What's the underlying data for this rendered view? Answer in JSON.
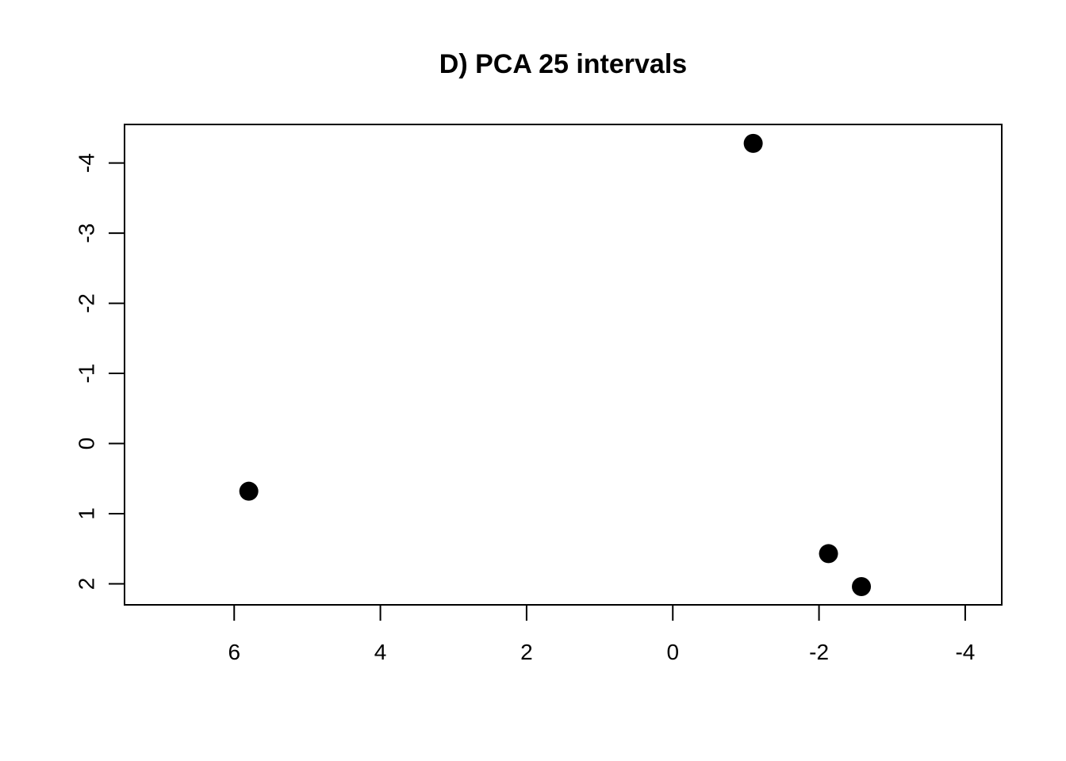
{
  "chart_data": {
    "type": "scatter",
    "title": "D) PCA 25 intervals",
    "xlabel": "",
    "ylabel": "",
    "xlim": [
      7.5,
      -4.5
    ],
    "ylim": [
      2.3,
      -4.55
    ],
    "x_reversed": true,
    "y_reversed": true,
    "xticks": [
      6,
      4,
      2,
      0,
      -2,
      -4
    ],
    "xtick_labels": [
      "6",
      "4",
      "2",
      "0",
      "-2",
      "-4"
    ],
    "yticks": [
      -4,
      -3,
      -2,
      -1,
      0,
      1,
      2
    ],
    "ytick_labels": [
      "-4",
      "-3",
      "-2",
      "-1",
      "0",
      "1",
      "2"
    ],
    "grid": false,
    "marker_color": "#000000",
    "series": [
      {
        "points": [
          {
            "x": 5.8,
            "y": 0.68
          },
          {
            "x": -1.1,
            "y": -4.28
          },
          {
            "x": -2.13,
            "y": 1.57
          },
          {
            "x": -2.58,
            "y": 2.04
          }
        ]
      }
    ]
  }
}
